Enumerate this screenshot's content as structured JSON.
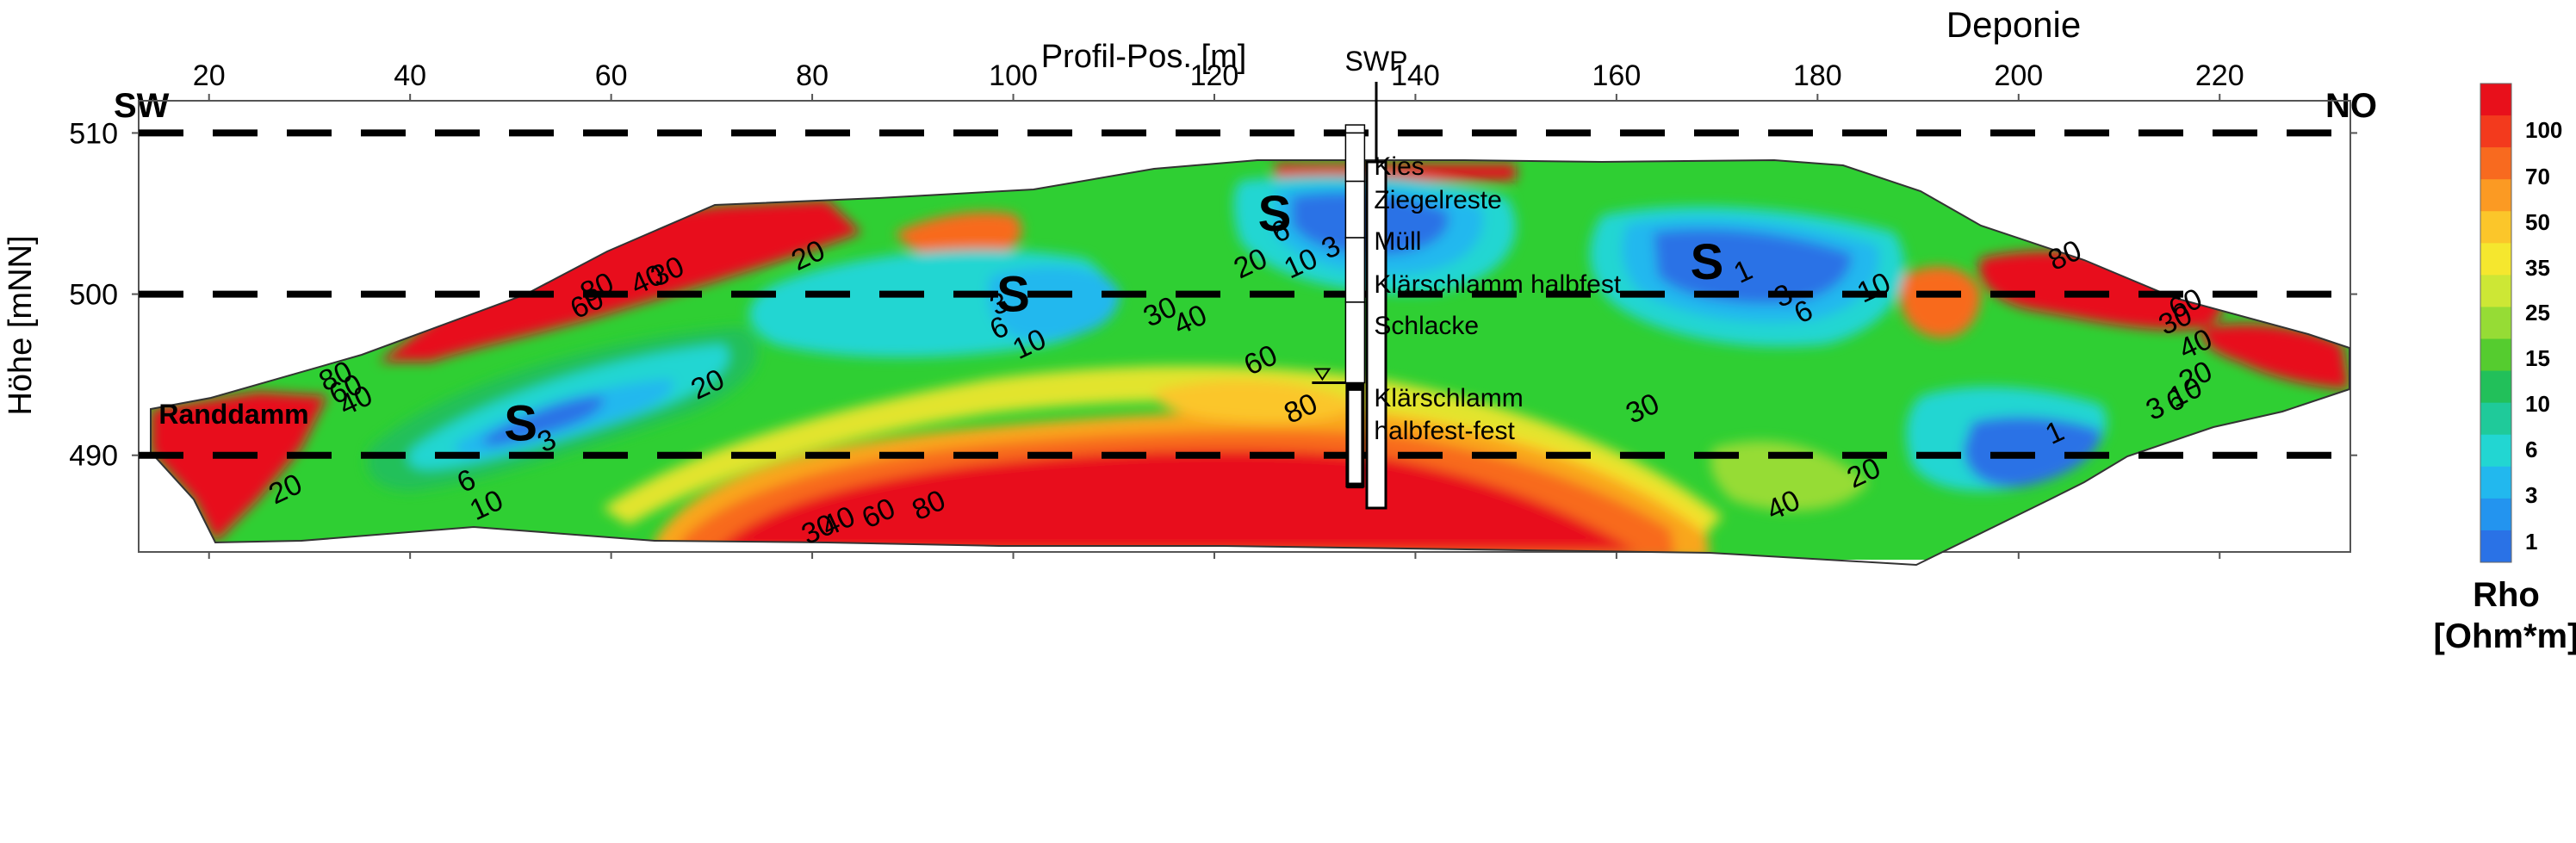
{
  "chart_data": {
    "type": "heatmap",
    "title": "Deponie",
    "xlabel": "Profil-Pos. [m]",
    "ylabel": "Höhe [mNN]",
    "xlim": [
      13,
      233
    ],
    "ylim": [
      484,
      512
    ],
    "x_ticks": [
      20,
      40,
      60,
      80,
      100,
      120,
      140,
      160,
      180,
      200,
      220
    ],
    "y_ticks": [
      510,
      500,
      490
    ],
    "side_labels": {
      "left": "SW",
      "right": "NO"
    },
    "dashed_lines_y": [
      510,
      500,
      490
    ],
    "colorbar": {
      "title_line1": "Rho",
      "title_line2": "[Ohm*m]",
      "tick_labels": [
        "100",
        "70",
        "50",
        "35",
        "25",
        "15",
        "10",
        "6",
        "3",
        "1"
      ],
      "colors": [
        "#e8101b",
        "#f33a1d",
        "#f86a1f",
        "#fb9a23",
        "#fbc62a",
        "#f5e72e",
        "#cde735",
        "#96dc35",
        "#55cc2f",
        "#22c05a",
        "#1fca9a",
        "#22d6d2",
        "#22b8ee",
        "#2394ef",
        "#2a72e6"
      ]
    },
    "borehole": {
      "label": "SWP",
      "x": 134,
      "layers": [
        {
          "text": "Kies",
          "top": 510.5,
          "bottom": 510
        },
        {
          "text": "Ziegelreste",
          "top": 510,
          "bottom": 507
        },
        {
          "text": "Müll",
          "top": 507,
          "bottom": 503.5
        },
        {
          "text": "Klärschlamm halbfest",
          "top": 503.5,
          "bottom": 499.5
        },
        {
          "text": "Schlacke",
          "top": 499.5,
          "bottom": 494.5
        },
        {
          "text": "Klärschlamm",
          "top": 494.5,
          "bottom": 488
        },
        {
          "text": "halbfest-fest",
          "top": null,
          "bottom": null
        }
      ],
      "water_level": 494.5
    },
    "annotations": [
      {
        "text": "Randdamm",
        "x": 15,
        "y": 492.5
      },
      {
        "text": "S",
        "x": 51,
        "y": 492
      },
      {
        "text": "S",
        "x": 100,
        "y": 500
      },
      {
        "text": "S",
        "x": 126,
        "y": 505
      },
      {
        "text": "S",
        "x": 169,
        "y": 502
      }
    ],
    "contour_labels": [
      {
        "text": "20",
        "x": 80,
        "y": 502.5
      },
      {
        "text": "20",
        "x": 70,
        "y": 494.5
      },
      {
        "text": "20",
        "x": 28,
        "y": 488
      },
      {
        "text": "20",
        "x": 124,
        "y": 502
      },
      {
        "text": "20",
        "x": 185,
        "y": 489
      },
      {
        "text": "30",
        "x": 115,
        "y": 499
      },
      {
        "text": "40",
        "x": 118,
        "y": 498.5
      },
      {
        "text": "60",
        "x": 125,
        "y": 496
      },
      {
        "text": "80",
        "x": 129,
        "y": 493
      },
      {
        "text": "30",
        "x": 163,
        "y": 493
      },
      {
        "text": "40",
        "x": 177,
        "y": 487
      },
      {
        "text": "10",
        "x": 102,
        "y": 497
      },
      {
        "text": "6",
        "x": 99,
        "y": 498
      },
      {
        "text": "3",
        "x": 99,
        "y": 499.5
      },
      {
        "text": "6",
        "x": 127,
        "y": 504
      },
      {
        "text": "10",
        "x": 129,
        "y": 502
      },
      {
        "text": "3",
        "x": 132,
        "y": 503
      },
      {
        "text": "1",
        "x": 173,
        "y": 501.5
      },
      {
        "text": "3",
        "x": 177,
        "y": 500
      },
      {
        "text": "6",
        "x": 179,
        "y": 499
      },
      {
        "text": "10",
        "x": 186,
        "y": 500.5
      },
      {
        "text": "80",
        "x": 205,
        "y": 502.5
      },
      {
        "text": "60",
        "x": 217,
        "y": 499.5
      },
      {
        "text": "30",
        "x": 216,
        "y": 498.5
      },
      {
        "text": "40",
        "x": 218,
        "y": 497
      },
      {
        "text": "20",
        "x": 218,
        "y": 495
      },
      {
        "text": "10",
        "x": 217,
        "y": 494
      },
      {
        "text": "6",
        "x": 216,
        "y": 493.5
      },
      {
        "text": "3",
        "x": 214,
        "y": 493
      },
      {
        "text": "1",
        "x": 204,
        "y": 491.5
      },
      {
        "text": "30",
        "x": 66,
        "y": 501.5
      },
      {
        "text": "40",
        "x": 64,
        "y": 501
      },
      {
        "text": "80",
        "x": 59,
        "y": 500.5
      },
      {
        "text": "60",
        "x": 58,
        "y": 499.5
      },
      {
        "text": "80",
        "x": 33,
        "y": 495
      },
      {
        "text": "60",
        "x": 34,
        "y": 494.2
      },
      {
        "text": "40",
        "x": 35,
        "y": 493.5
      },
      {
        "text": "6",
        "x": 46,
        "y": 488.5
      },
      {
        "text": "10",
        "x": 48,
        "y": 487
      },
      {
        "text": "3",
        "x": 54,
        "y": 491
      },
      {
        "text": "30",
        "x": 81,
        "y": 485.5
      },
      {
        "text": "40",
        "x": 83,
        "y": 486
      },
      {
        "text": "60",
        "x": 87,
        "y": 486.5
      },
      {
        "text": "80",
        "x": 92,
        "y": 487
      }
    ]
  }
}
